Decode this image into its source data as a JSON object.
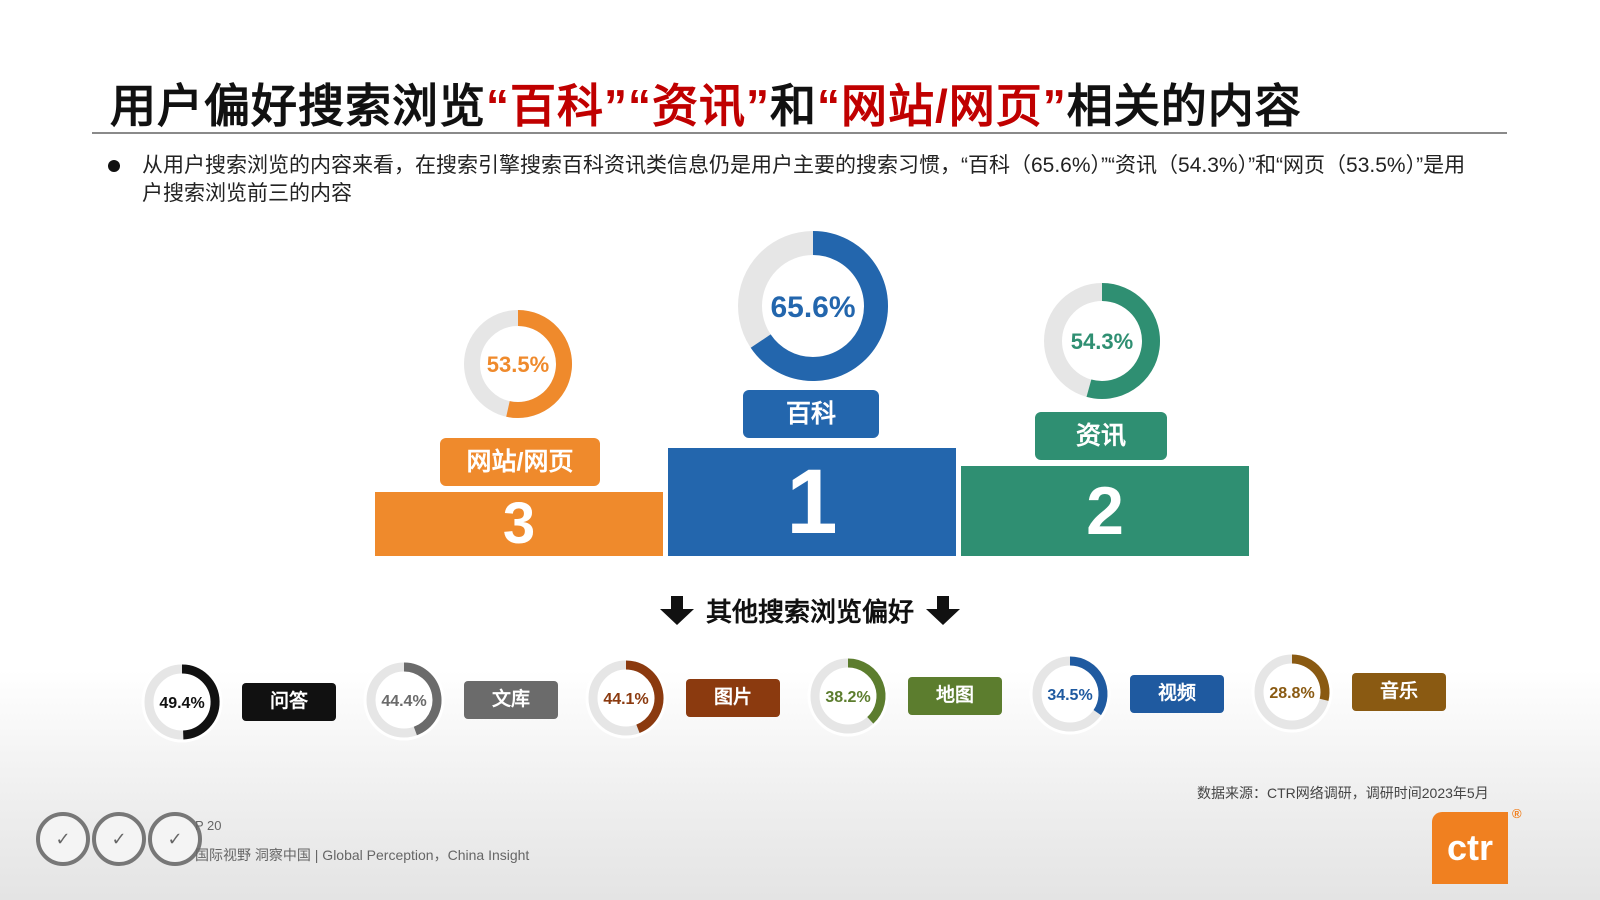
{
  "title": {
    "part1": "用户偏好搜索浏览",
    "hl1": "“百科”",
    "hl2": "“资讯”",
    "part2": "和",
    "hl3": "“网站/网页”",
    "part3": "相关的内容"
  },
  "bullet": "从用户搜索浏览的内容来看，在搜索引擎搜索百科资讯类信息仍是用户主要的搜索习惯，“百科（65.6%）”“资讯（54.3%）”和“网页（53.5%）”是用户搜索浏览前三的内容",
  "podium": {
    "first": {
      "rank": "1",
      "label": "百科",
      "value_text": "65.6%",
      "color": "#2366ad"
    },
    "second": {
      "rank": "2",
      "label": "资讯",
      "value_text": "54.3%",
      "color": "#2f8f72"
    },
    "third": {
      "rank": "3",
      "label": "网站/网页",
      "value_text": "53.5%",
      "color": "#ef8a2c"
    }
  },
  "sub_heading": "其他搜索浏览偏好",
  "source": "数据来源：CTR网络调研，调研时间2023年5月",
  "footer": {
    "page": "P 20",
    "text": "国际视野  洞察中国 |  Global Perception，China Insight",
    "logo": "ctr",
    "logo_mark": "®"
  },
  "chart_data": [
    {
      "type": "pie",
      "categories": [
        "百科",
        "资讯",
        "网站/网页"
      ],
      "values": [
        65.6,
        54.3,
        53.5
      ],
      "colors": [
        "#2366ad",
        "#2f8f72",
        "#ef8a2c"
      ],
      "ranks": [
        1,
        2,
        3
      ]
    },
    {
      "type": "pie",
      "categories": [
        "问答",
        "文库",
        "图片",
        "地图",
        "视频",
        "音乐"
      ],
      "values": [
        49.4,
        44.4,
        44.1,
        38.2,
        34.5,
        28.8
      ],
      "colors": [
        "#111111",
        "#6b6b6b",
        "#8b3a0f",
        "#5c7d2e",
        "#1f5aa0",
        "#8a5a12"
      ]
    }
  ]
}
